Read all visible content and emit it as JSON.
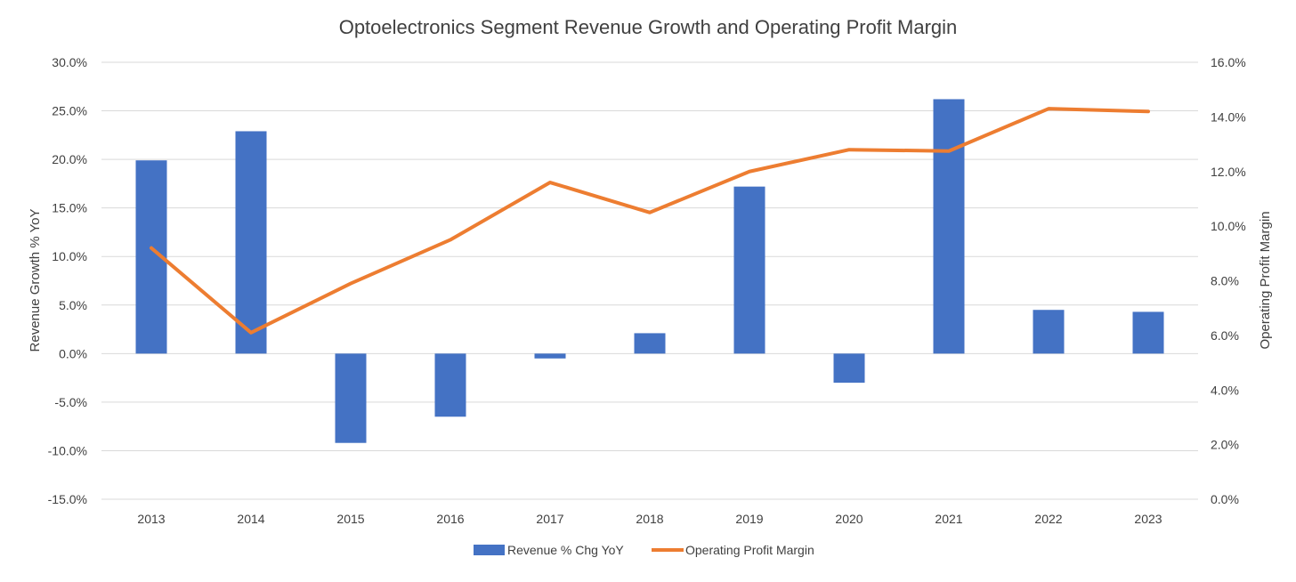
{
  "chart_data": {
    "type": "bar",
    "title": "Optoelectronics Segment Revenue Growth and Operating Profit Margin",
    "xlabel": "",
    "ylabel": "Revenue Growth % YoY",
    "y2label": "Operating Profit Margin",
    "categories": [
      "2013",
      "2014",
      "2015",
      "2016",
      "2017",
      "2018",
      "2019",
      "2020",
      "2021",
      "2022",
      "2023"
    ],
    "ylim": [
      -15,
      30
    ],
    "y2lim": [
      0,
      16
    ],
    "yticks": [
      "30.0%",
      "25.0%",
      "20.0%",
      "15.0%",
      "10.0%",
      "5.0%",
      "0.0%",
      "-5.0%",
      "-10.0%",
      "-15.0%"
    ],
    "y2ticks": [
      "16.0%",
      "14.0%",
      "12.0%",
      "10.0%",
      "8.0%",
      "6.0%",
      "4.0%",
      "2.0%",
      "0.0%"
    ],
    "grid": true,
    "legend_position": "bottom",
    "series": [
      {
        "name": "Revenue % Chg YoY",
        "kind": "bar",
        "axis": "left",
        "color": "#4472C4",
        "values": [
          19.9,
          22.9,
          -9.2,
          -6.5,
          -0.5,
          2.1,
          17.2,
          -3.0,
          26.2,
          4.5,
          4.3
        ]
      },
      {
        "name": "Operating Profit Margin",
        "kind": "line",
        "axis": "right",
        "color": "#ED7D31",
        "values": [
          9.2,
          6.1,
          7.9,
          9.5,
          11.6,
          10.5,
          12.0,
          12.8,
          12.75,
          14.3,
          14.2
        ]
      }
    ]
  }
}
